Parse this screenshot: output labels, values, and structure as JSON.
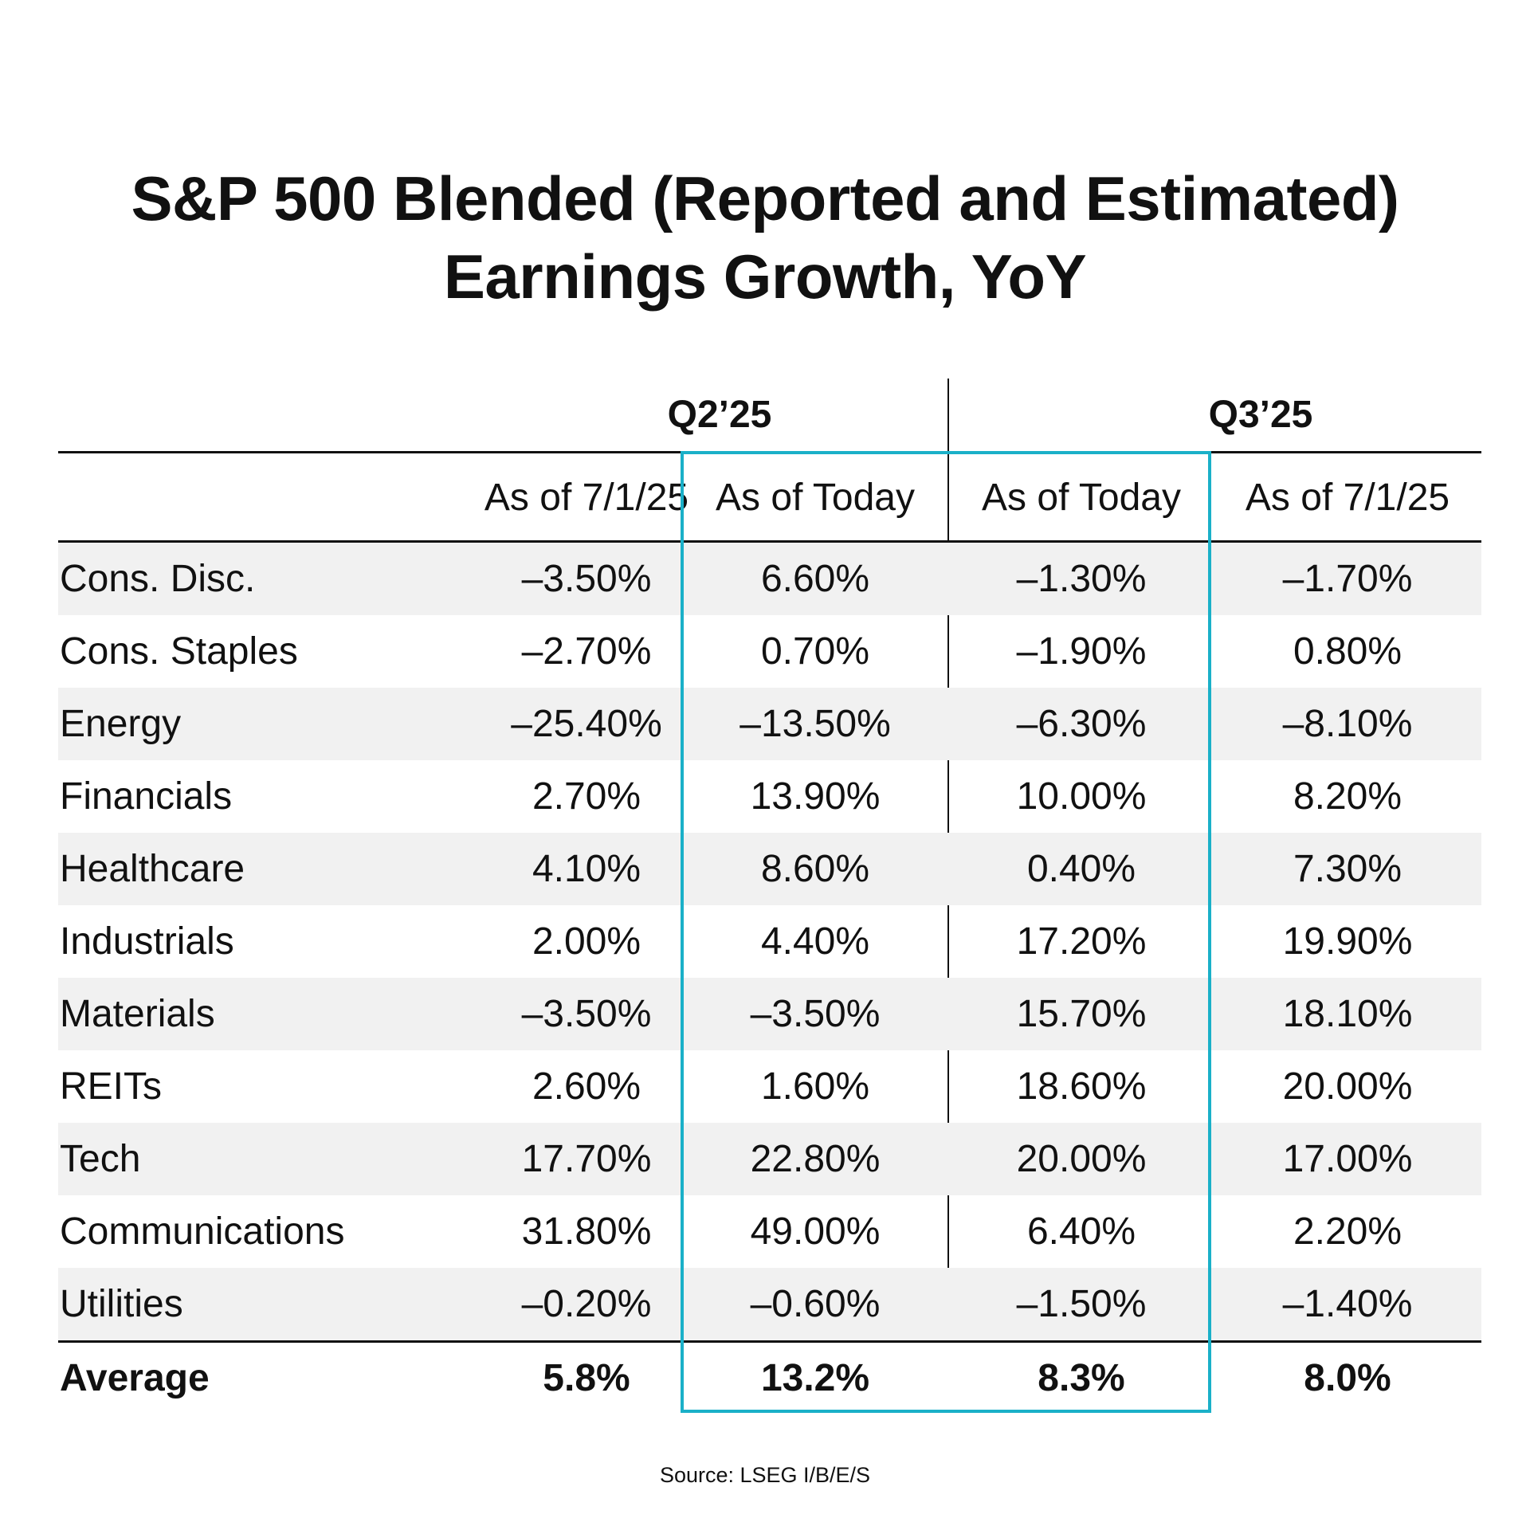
{
  "title": {
    "line1": "S&P 500 Blended (Reported and Estimated)",
    "line2": "Earnings Growth, YoY"
  },
  "colors": {
    "highlight": "#1ab0c8",
    "row_shade": "#f1f1f1",
    "text": "#111111"
  },
  "chart_data": {
    "type": "table",
    "title": "S&P 500 Blended (Reported and Estimated) Earnings Growth, YoY",
    "groups": [
      "Q2’25",
      "Q3’25"
    ],
    "columns": [
      "As of 7/1/25",
      "As of Today",
      "As of Today",
      "As of 7/1/25"
    ],
    "rows": [
      {
        "sector": "Cons. Disc.",
        "values": [
          "–3.50%",
          "6.60%",
          "–1.30%",
          "–1.70%"
        ]
      },
      {
        "sector": "Cons. Staples",
        "values": [
          "–2.70%",
          "0.70%",
          "–1.90%",
          "0.80%"
        ]
      },
      {
        "sector": "Energy",
        "values": [
          "–25.40%",
          "–13.50%",
          "–6.30%",
          "–8.10%"
        ]
      },
      {
        "sector": "Financials",
        "values": [
          "2.70%",
          "13.90%",
          "10.00%",
          "8.20%"
        ]
      },
      {
        "sector": "Healthcare",
        "values": [
          "4.10%",
          "8.60%",
          "0.40%",
          "7.30%"
        ]
      },
      {
        "sector": "Industrials",
        "values": [
          "2.00%",
          "4.40%",
          "17.20%",
          "19.90%"
        ]
      },
      {
        "sector": "Materials",
        "values": [
          "–3.50%",
          "–3.50%",
          "15.70%",
          "18.10%"
        ]
      },
      {
        "sector": "REITs",
        "values": [
          "2.60%",
          "1.60%",
          "18.60%",
          "20.00%"
        ]
      },
      {
        "sector": "Tech",
        "values": [
          "17.70%",
          "22.80%",
          "20.00%",
          "17.00%"
        ]
      },
      {
        "sector": "Communications",
        "values": [
          "31.80%",
          "49.00%",
          "6.40%",
          "2.20%"
        ]
      },
      {
        "sector": "Utilities",
        "values": [
          "–0.20%",
          "–0.60%",
          "–1.50%",
          "–1.40%"
        ]
      }
    ],
    "average": {
      "label": "Average",
      "values": [
        "5.8%",
        "13.2%",
        "8.3%",
        "8.0%"
      ]
    },
    "highlighted_columns": [
      "Q2’25 As of Today",
      "Q3’25 As of Today"
    ]
  },
  "source": "Source: LSEG I/B/E/S"
}
